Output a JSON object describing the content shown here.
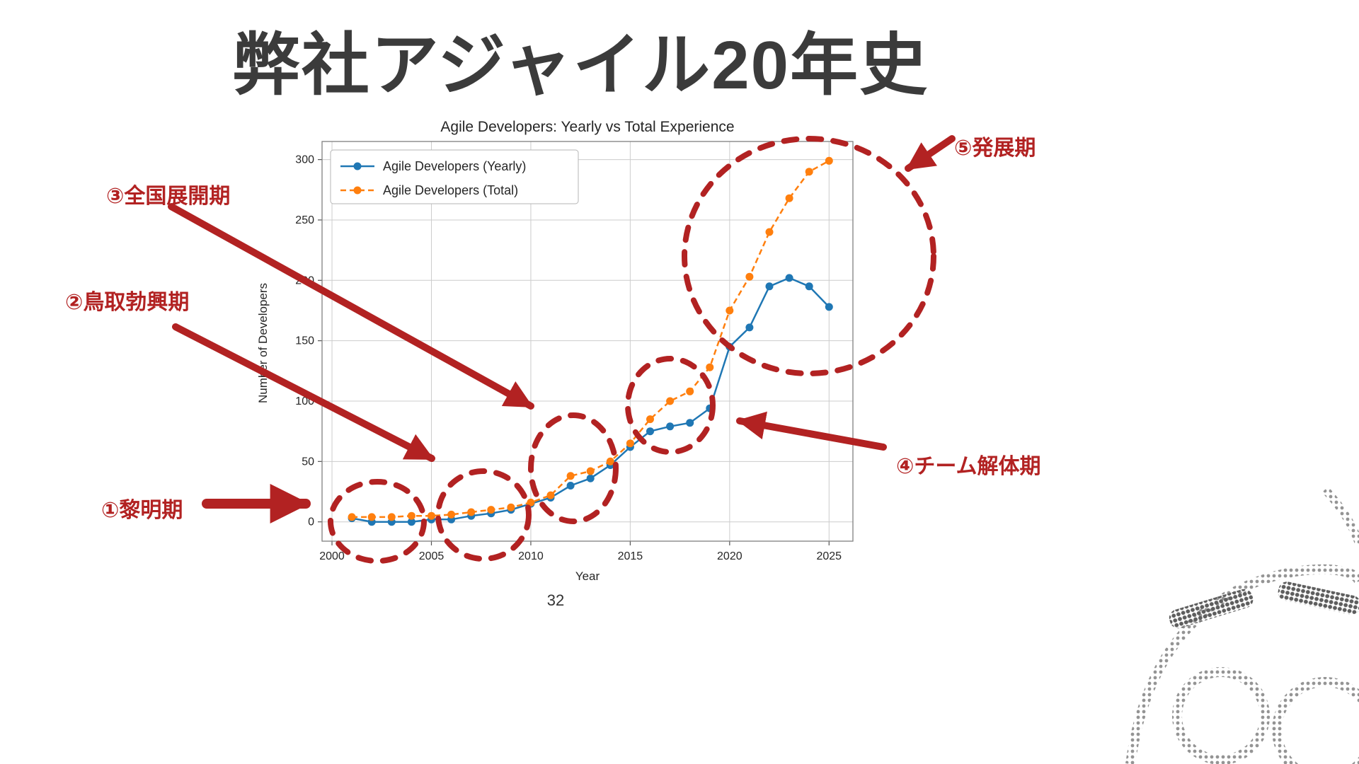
{
  "slide": {
    "title": "弊社アジャイル20年史",
    "page_number": "32"
  },
  "colors": {
    "annotation": "#b22222",
    "title_text": "#3b3b3b"
  },
  "annotations": [
    {
      "label": "①黎明期"
    },
    {
      "label": "②鳥取勃興期"
    },
    {
      "label": "③全国展開期"
    },
    {
      "label": "④チーム解体期"
    },
    {
      "label": "⑤発展期"
    }
  ],
  "chart_data": {
    "type": "line",
    "title": "Agile Developers: Yearly vs Total Experience",
    "xlabel": "Year",
    "ylabel": "Number of Developers",
    "grid": true,
    "legend_position": "upper left",
    "xlim": [
      1999.5,
      2026.2
    ],
    "ylim": [
      -16,
      315
    ],
    "xticks": [
      2000,
      2005,
      2010,
      2015,
      2020,
      2025
    ],
    "yticks": [
      0,
      50,
      100,
      150,
      200,
      250,
      300
    ],
    "x": [
      2001,
      2002,
      2003,
      2004,
      2005,
      2006,
      2007,
      2008,
      2009,
      2010,
      2011,
      2012,
      2013,
      2014,
      2015,
      2016,
      2017,
      2018,
      2019,
      2020,
      2021,
      2022,
      2023,
      2024,
      2025
    ],
    "series": [
      {
        "name": "Agile Developers (Yearly)",
        "color": "#1f77b4",
        "style": "solid",
        "values": [
          3,
          0,
          0,
          0,
          2,
          2,
          5,
          7,
          10,
          15,
          20,
          30,
          36,
          47,
          62,
          75,
          79,
          82,
          94,
          145,
          161,
          195,
          202,
          195,
          178
        ]
      },
      {
        "name": "Agile Developers (Total)",
        "color": "#ff7f0e",
        "style": "dashed",
        "values": [
          4,
          4,
          4,
          5,
          5,
          6,
          8,
          10,
          12,
          16,
          22,
          38,
          42,
          50,
          65,
          85,
          100,
          108,
          128,
          175,
          203,
          240,
          268,
          290,
          299
        ]
      }
    ]
  }
}
